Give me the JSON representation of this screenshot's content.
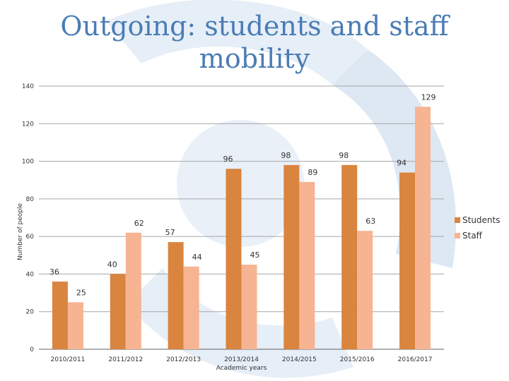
{
  "slide": {
    "title": "Outgoing: students and staff mobility"
  },
  "chart_data": {
    "type": "bar",
    "title": "",
    "xlabel": "Academic years",
    "ylabel": "Number of people",
    "categories": [
      "2010/2011",
      "2011/2012",
      "2012/2013",
      "2013/2014",
      "2014/2015",
      "2015/2016",
      "2016/2017"
    ],
    "series": [
      {
        "name": "Students",
        "values": [
          36,
          40,
          57,
          96,
          98,
          98,
          94
        ],
        "color": "#d9843f"
      },
      {
        "name": "Staff",
        "values": [
          25,
          62,
          44,
          45,
          89,
          63,
          129
        ],
        "color": "#f6b492"
      }
    ],
    "ylim": [
      0,
      140
    ],
    "yticks": [
      0,
      20,
      40,
      60,
      80,
      100,
      120,
      140
    ],
    "grid": true,
    "legend": "right"
  }
}
